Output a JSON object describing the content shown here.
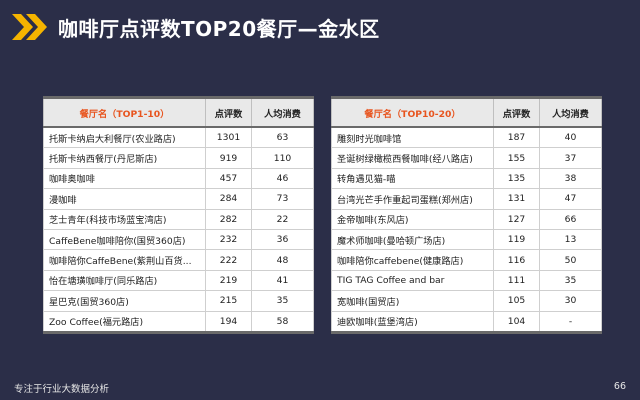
{
  "header": {
    "title": "咖啡厅点评数TOP20餐厅—金水区"
  },
  "tables": {
    "left": {
      "col1": "餐厅名（TOP1-10）",
      "col2": "点评数",
      "col3": "人均消费",
      "rows": [
        {
          "name": "托斯卡纳启大利餐厅(农业路店)",
          "reviews": "1301",
          "avg": "63"
        },
        {
          "name": "托斯卡纳西餐厅(丹尼斯店)",
          "reviews": "919",
          "avg": "110"
        },
        {
          "name": "咖啡奥咖啡",
          "reviews": "457",
          "avg": "46"
        },
        {
          "name": "漫咖啡",
          "reviews": "284",
          "avg": "73"
        },
        {
          "name": "芝士青年(科技市场蓝宝湾店)",
          "reviews": "282",
          "avg": "22"
        },
        {
          "name": "CaffeBene咖啡陪你(国贸360店)",
          "reviews": "232",
          "avg": "36"
        },
        {
          "name": "咖啡陪你CaffeBene(紫荆山百货...",
          "reviews": "222",
          "avg": "48"
        },
        {
          "name": "怡在塘璜咖啡厅(同乐路店)",
          "reviews": "219",
          "avg": "41"
        },
        {
          "name": "星巴克(国贸360店)",
          "reviews": "215",
          "avg": "35"
        },
        {
          "name": "Zoo Coffee(福元路店)",
          "reviews": "194",
          "avg": "58"
        }
      ]
    },
    "right": {
      "col1": "餐厅名（TOP10-20）",
      "col2": "点评数",
      "col3": "人均消费",
      "rows": [
        {
          "name": "雕刻时光咖啡馆",
          "reviews": "187",
          "avg": "40"
        },
        {
          "name": "圣诞树绿橄榄西餐咖啡(经八路店)",
          "reviews": "155",
          "avg": "37"
        },
        {
          "name": "转角遇见猫-喵",
          "reviews": "135",
          "avg": "38"
        },
        {
          "name": "台湾光芒手作重起司蛋糕(郑州店)",
          "reviews": "131",
          "avg": "47"
        },
        {
          "name": "金帝咖啡(东风店)",
          "reviews": "127",
          "avg": "66"
        },
        {
          "name": "魔术师咖啡(曼哈顿广场店)",
          "reviews": "119",
          "avg": "13"
        },
        {
          "name": "咖啡陪你caffebene(健康路店)",
          "reviews": "116",
          "avg": "50"
        },
        {
          "name": "TIG TAG Coffee and bar",
          "reviews": "111",
          "avg": "35"
        },
        {
          "name": "宽咖啡(国贸店)",
          "reviews": "105",
          "avg": "30"
        },
        {
          "name": "迪欧咖啡(蓝堡湾店)",
          "reviews": "104",
          "avg": "-"
        }
      ]
    }
  },
  "footer": {
    "left": "专注于行业大数据分析",
    "page": "66"
  },
  "colors": {
    "background": "#2b2e48",
    "accent": "#f5b400",
    "header_text": "#e8541e"
  }
}
